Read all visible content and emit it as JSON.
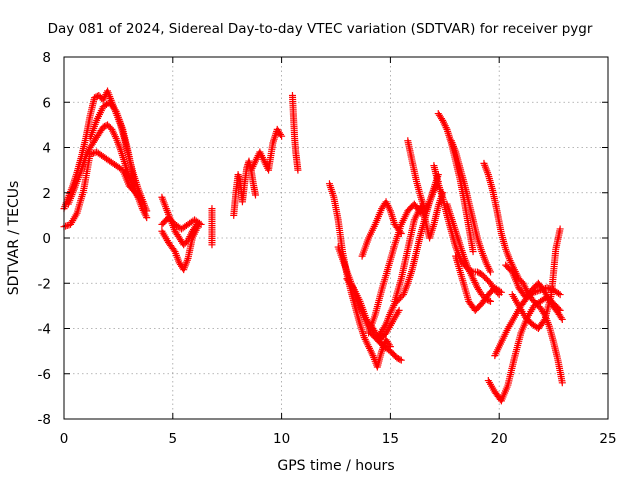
{
  "chart_data": {
    "type": "scatter",
    "title": "Day 081 of 2024, Sidereal Day-to-day VTEC variation (SDTVAR) for receiver pygr",
    "xlabel": "GPS time / hours",
    "ylabel": "SDTVAR / TECUs",
    "xlim": [
      0,
      25
    ],
    "ylim": [
      -8,
      8
    ],
    "xticks": [
      0,
      5,
      10,
      15,
      20,
      25
    ],
    "yticks": [
      -8,
      -6,
      -4,
      -2,
      0,
      2,
      4,
      6,
      8
    ],
    "grid": true,
    "marker": "+",
    "color": "#ff0000",
    "series": [
      {
        "name": "s1",
        "x": [
          0.0,
          0.2,
          0.4,
          0.6,
          0.8,
          1.0,
          1.2,
          1.4,
          1.6,
          1.8,
          2.0,
          2.2,
          2.4,
          2.6,
          2.8,
          3.0,
          3.2,
          3.4,
          3.6,
          3.8
        ],
        "y": [
          1.3,
          1.8,
          2.3,
          2.9,
          3.6,
          4.4,
          5.4,
          6.2,
          6.3,
          6.1,
          6.5,
          6.0,
          5.5,
          5.0,
          4.3,
          3.5,
          2.8,
          2.2,
          1.7,
          1.2
        ]
      },
      {
        "name": "s2",
        "x": [
          0.2,
          0.4,
          0.6,
          0.8,
          1.0,
          1.2,
          1.4,
          1.6,
          1.8,
          2.0,
          2.2,
          2.4,
          2.6,
          2.8,
          3.0,
          3.2,
          3.4,
          3.6,
          3.8
        ],
        "y": [
          1.5,
          2.0,
          2.5,
          3.0,
          3.6,
          4.0,
          4.3,
          4.6,
          4.9,
          5.0,
          4.8,
          4.4,
          3.9,
          3.3,
          2.7,
          2.2,
          1.8,
          1.3,
          0.9
        ]
      },
      {
        "name": "s3",
        "x": [
          0.0,
          0.3,
          0.6,
          0.9,
          1.2,
          1.5,
          1.8,
          2.1,
          2.4,
          2.7,
          3.0,
          3.3,
          3.6
        ],
        "y": [
          0.5,
          0.6,
          1.1,
          2.1,
          3.7,
          3.8,
          3.6,
          3.4,
          3.2,
          3.0,
          2.3,
          2.0,
          1.6
        ]
      },
      {
        "name": "s4",
        "x": [
          1.2,
          1.5,
          1.8,
          2.1,
          2.4,
          2.7,
          3.0,
          3.3
        ],
        "y": [
          4.4,
          5.2,
          5.8,
          6.0,
          5.6,
          4.8,
          3.6,
          2.0
        ]
      },
      {
        "name": "s5",
        "x": [
          4.5,
          4.7,
          4.9,
          5.1,
          5.3,
          5.5,
          5.7,
          5.9,
          6.1
        ],
        "y": [
          1.8,
          1.3,
          0.8,
          0.3,
          0.0,
          -0.3,
          -0.1,
          0.3,
          0.6
        ]
      },
      {
        "name": "s6",
        "x": [
          4.5,
          4.8,
          5.1,
          5.3,
          5.5,
          5.7,
          5.9,
          6.2
        ],
        "y": [
          0.3,
          -0.2,
          -0.6,
          -1.1,
          -1.4,
          -0.9,
          0.0,
          0.6
        ]
      },
      {
        "name": "s7",
        "x": [
          4.5,
          4.8,
          5.1,
          5.4,
          5.7,
          6.0,
          6.3
        ],
        "y": [
          0.6,
          0.9,
          0.6,
          0.4,
          0.6,
          0.8,
          0.6
        ]
      },
      {
        "name": "s8",
        "x": [
          6.8,
          6.8
        ],
        "y": [
          1.3,
          -0.3
        ]
      },
      {
        "name": "s9",
        "x": [
          7.8,
          7.9,
          8.0,
          8.1,
          8.2,
          8.3,
          8.4,
          8.5,
          8.6,
          8.7,
          8.8
        ],
        "y": [
          1.0,
          2.0,
          2.8,
          2.5,
          1.6,
          2.4,
          3.1,
          3.4,
          3.0,
          2.4,
          1.9
        ]
      },
      {
        "name": "s10",
        "x": [
          8.6,
          8.8,
          9.0,
          9.2,
          9.4,
          9.6,
          9.8,
          10.0
        ],
        "y": [
          3.0,
          3.4,
          3.8,
          3.4,
          3.0,
          4.2,
          4.8,
          4.5
        ]
      },
      {
        "name": "s11",
        "x": [
          10.5,
          10.55,
          10.6,
          10.65,
          10.7,
          10.75
        ],
        "y": [
          6.3,
          5.3,
          4.4,
          3.8,
          3.4,
          3.0
        ]
      },
      {
        "name": "s12",
        "x": [
          12.2,
          12.4,
          12.6,
          12.8,
          13.0,
          13.2,
          13.4,
          13.6,
          13.8,
          14.0,
          14.2,
          14.4,
          14.6,
          14.8,
          15.0
        ],
        "y": [
          2.4,
          1.8,
          0.8,
          -0.6,
          -1.6,
          -2.4,
          -3.1,
          -3.8,
          -4.4,
          -4.8,
          -5.2,
          -5.7,
          -5.0,
          -4.5,
          -4.8
        ]
      },
      {
        "name": "s13",
        "x": [
          12.6,
          12.9,
          13.2,
          13.5,
          13.8,
          14.1,
          14.4,
          14.7,
          15.0,
          15.3,
          15.5
        ],
        "y": [
          -0.4,
          -1.2,
          -2.0,
          -2.8,
          -3.5,
          -4.2,
          -4.5,
          -4.8,
          -5.0,
          -5.3,
          -5.4
        ]
      },
      {
        "name": "s14",
        "x": [
          13.0,
          13.3,
          13.6,
          13.9,
          14.2,
          14.5,
          14.8,
          15.1,
          15.4
        ],
        "y": [
          -1.8,
          -2.2,
          -2.8,
          -3.6,
          -4.0,
          -4.5,
          -4.2,
          -3.7,
          -3.2
        ]
      },
      {
        "name": "s15",
        "x": [
          14.5,
          14.8,
          15.0,
          15.2,
          15.4,
          15.6,
          15.8,
          16.0,
          16.2,
          16.4,
          16.6,
          16.8,
          17.0,
          17.2
        ],
        "y": [
          -4.3,
          -3.8,
          -3.3,
          -2.9,
          -2.7,
          -2.5,
          -2.0,
          -1.4,
          -0.6,
          0.2,
          0.9,
          1.6,
          2.1,
          2.5
        ]
      },
      {
        "name": "s16",
        "x": [
          14.0,
          14.3,
          14.6,
          14.9,
          15.2,
          15.5,
          15.8,
          16.1,
          16.4
        ],
        "y": [
          -4.2,
          -3.4,
          -2.3,
          -1.3,
          -0.3,
          0.6,
          1.2,
          1.5,
          1.1
        ]
      },
      {
        "name": "s17",
        "x": [
          13.7,
          14.0,
          14.3,
          14.6,
          14.8,
          15.0,
          15.2,
          15.5
        ],
        "y": [
          -0.8,
          0.0,
          0.6,
          1.3,
          1.6,
          1.2,
          0.6,
          0.2
        ]
      },
      {
        "name": "s18",
        "x": [
          15.2,
          15.5,
          15.8,
          16.1,
          16.4,
          16.6,
          16.8,
          17.0,
          17.2,
          17.4
        ],
        "y": [
          -2.8,
          -1.8,
          -0.5,
          0.8,
          1.4,
          0.8,
          0.0,
          0.6,
          1.4,
          2.0
        ]
      },
      {
        "name": "s19",
        "x": [
          15.8,
          16.0,
          16.2,
          16.4,
          16.6,
          16.8,
          17.0,
          17.2
        ],
        "y": [
          4.3,
          3.4,
          2.5,
          1.8,
          1.2,
          1.6,
          2.2,
          2.8
        ]
      },
      {
        "name": "s20",
        "x": [
          17.0,
          17.2,
          17.4,
          17.6,
          17.8,
          18.0,
          18.2,
          18.4,
          18.6,
          18.8,
          19.0,
          19.2,
          19.4,
          19.6,
          19.8,
          20.0
        ],
        "y": [
          3.2,
          2.4,
          1.8,
          1.0,
          0.3,
          -0.4,
          -0.9,
          -1.2,
          -1.4,
          -1.5,
          -1.5,
          -1.6,
          -1.8,
          -2.0,
          -2.3,
          -2.5
        ]
      },
      {
        "name": "s21",
        "x": [
          17.2,
          17.4,
          17.6,
          17.8,
          18.0,
          18.2,
          18.4,
          18.6,
          18.8
        ],
        "y": [
          5.5,
          5.2,
          4.8,
          4.2,
          3.4,
          2.6,
          1.6,
          0.5,
          -0.6
        ]
      },
      {
        "name": "s22",
        "x": [
          17.8,
          18.0,
          18.2,
          18.4,
          18.6,
          18.8,
          19.0,
          19.2,
          19.4,
          19.6
        ],
        "y": [
          4.3,
          3.8,
          3.1,
          2.4,
          1.6,
          0.8,
          0.0,
          -0.6,
          -1.1,
          -1.5
        ]
      },
      {
        "name": "s23",
        "x": [
          17.6,
          17.8,
          18.0,
          18.2,
          18.4,
          18.6,
          18.8,
          19.0,
          19.2,
          19.4,
          19.6
        ],
        "y": [
          1.5,
          0.9,
          0.3,
          -0.3,
          -0.9,
          -1.4,
          -1.8,
          -2.2,
          -2.5,
          -2.7,
          -2.8
        ]
      },
      {
        "name": "s24",
        "x": [
          18.0,
          18.3,
          18.6,
          18.9,
          19.2,
          19.5,
          19.8,
          20.1
        ],
        "y": [
          -0.8,
          -1.8,
          -2.8,
          -3.2,
          -2.9,
          -2.5,
          -2.2,
          -2.4
        ]
      },
      {
        "name": "s25",
        "x": [
          19.3,
          19.5,
          19.7,
          19.9,
          20.1,
          20.3,
          20.5,
          20.7,
          20.9,
          21.1,
          21.3,
          21.5,
          21.7,
          21.9,
          22.1,
          22.3,
          22.5,
          22.7,
          22.9
        ],
        "y": [
          3.3,
          2.8,
          2.1,
          1.2,
          0.2,
          -0.5,
          -1.0,
          -1.4,
          -1.8,
          -2.0,
          -2.4,
          -2.7,
          -2.9,
          -3.1,
          -3.4,
          -3.9,
          -4.6,
          -5.4,
          -6.4
        ]
      },
      {
        "name": "s26",
        "x": [
          19.5,
          19.8,
          20.1,
          20.4,
          20.7,
          21.0,
          21.3,
          21.6,
          21.9,
          22.2,
          22.5,
          22.8
        ],
        "y": [
          -6.3,
          -6.8,
          -7.2,
          -6.5,
          -5.3,
          -4.2,
          -3.5,
          -3.0,
          -2.8,
          -2.6,
          -2.9,
          -3.2
        ]
      },
      {
        "name": "s27",
        "x": [
          19.8,
          20.1,
          20.4,
          20.7,
          21.0,
          21.3,
          21.6,
          21.9,
          22.2,
          22.5,
          22.8
        ],
        "y": [
          -5.2,
          -4.6,
          -4.0,
          -3.5,
          -3.0,
          -2.6,
          -2.4,
          -2.3,
          -2.2,
          -2.3,
          -2.5
        ]
      },
      {
        "name": "s28",
        "x": [
          20.6,
          20.9,
          21.2,
          21.5,
          21.8,
          22.1,
          22.4,
          22.6,
          22.8
        ],
        "y": [
          -2.5,
          -3.0,
          -3.5,
          -3.8,
          -4.0,
          -3.6,
          -2.5,
          -0.5,
          0.4
        ]
      },
      {
        "name": "s29",
        "x": [
          20.3,
          20.6,
          20.9,
          21.2,
          21.5,
          21.8,
          22.1,
          22.4,
          22.7,
          22.9
        ],
        "y": [
          -1.2,
          -1.5,
          -2.2,
          -2.6,
          -2.3,
          -2.0,
          -2.4,
          -2.9,
          -3.3,
          -3.6
        ]
      }
    ]
  }
}
